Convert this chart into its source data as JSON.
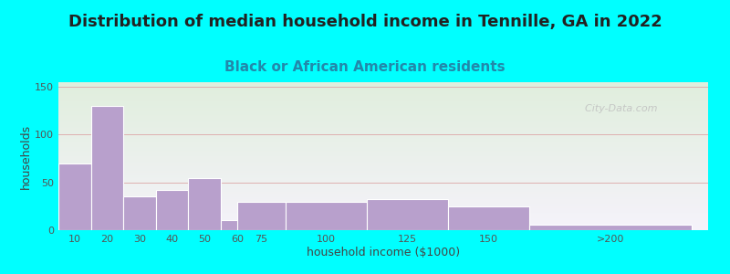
{
  "title": "Distribution of median household income in Tennille, GA in 2022",
  "subtitle": "Black or African American residents",
  "xlabel": "household income ($1000)",
  "ylabel": "households",
  "background_outer": "#00FFFF",
  "background_inner_top": "#e0eedd",
  "background_inner_bottom": "#f5f2fa",
  "bar_color": "#b8a0cc",
  "bar_edge_color": "#ffffff",
  "grid_color": "#ddaaaa",
  "values": [
    70,
    130,
    35,
    42,
    55,
    11,
    30,
    30,
    33,
    25,
    6
  ],
  "bar_widths": [
    10,
    10,
    10,
    10,
    10,
    10,
    15,
    25,
    25,
    25,
    50
  ],
  "bar_lefts": [
    5,
    15,
    25,
    35,
    45,
    55,
    60,
    75,
    100,
    125,
    150
  ],
  "ylim": [
    0,
    155
  ],
  "yticks": [
    0,
    50,
    100,
    150
  ],
  "xtick_labels": [
    "10",
    "20",
    "30",
    "40",
    "50",
    "60",
    "75",
    "100",
    "125",
    "150",
    ">200"
  ],
  "title_fontsize": 13,
  "subtitle_fontsize": 11,
  "axis_label_fontsize": 9,
  "tick_fontsize": 8,
  "watermark_text": "  City-Data.com"
}
